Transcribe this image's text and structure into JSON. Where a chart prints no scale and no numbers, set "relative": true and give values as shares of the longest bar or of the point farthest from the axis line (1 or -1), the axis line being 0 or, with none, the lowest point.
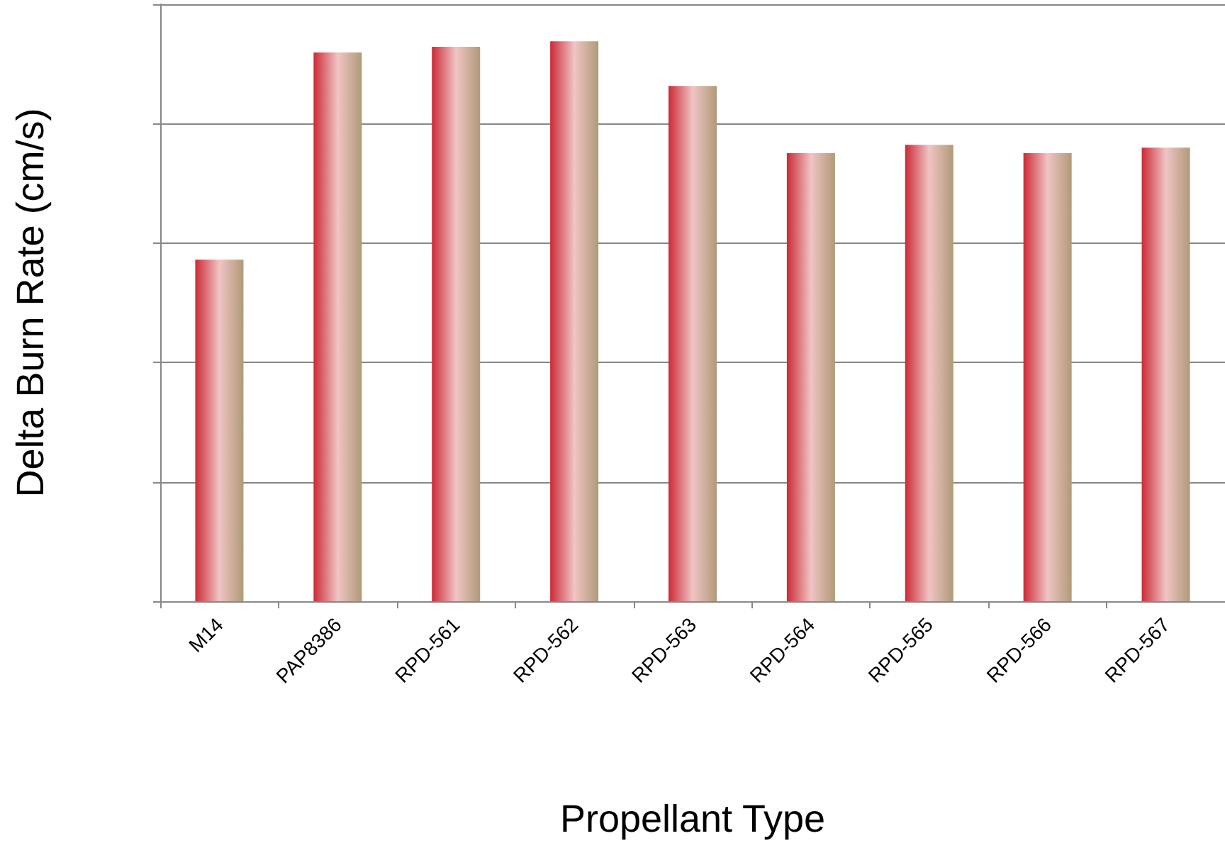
{
  "chart_data": {
    "type": "bar",
    "xlabel": "Propellant Type",
    "ylabel": "Delta Burn Rate (cm/s)",
    "relative": true,
    "grid": "y",
    "categories": [
      "M14",
      "PAP8386",
      "RPD-561",
      "RPD-562",
      "RPD-563",
      "RPD-564",
      "RPD-565",
      "RPD-566",
      "RPD-567"
    ],
    "values": [
      0.61,
      0.98,
      0.99,
      1,
      0.92,
      0.8,
      0.815,
      0.8,
      0.81
    ],
    "color": "#cc2a36"
  }
}
